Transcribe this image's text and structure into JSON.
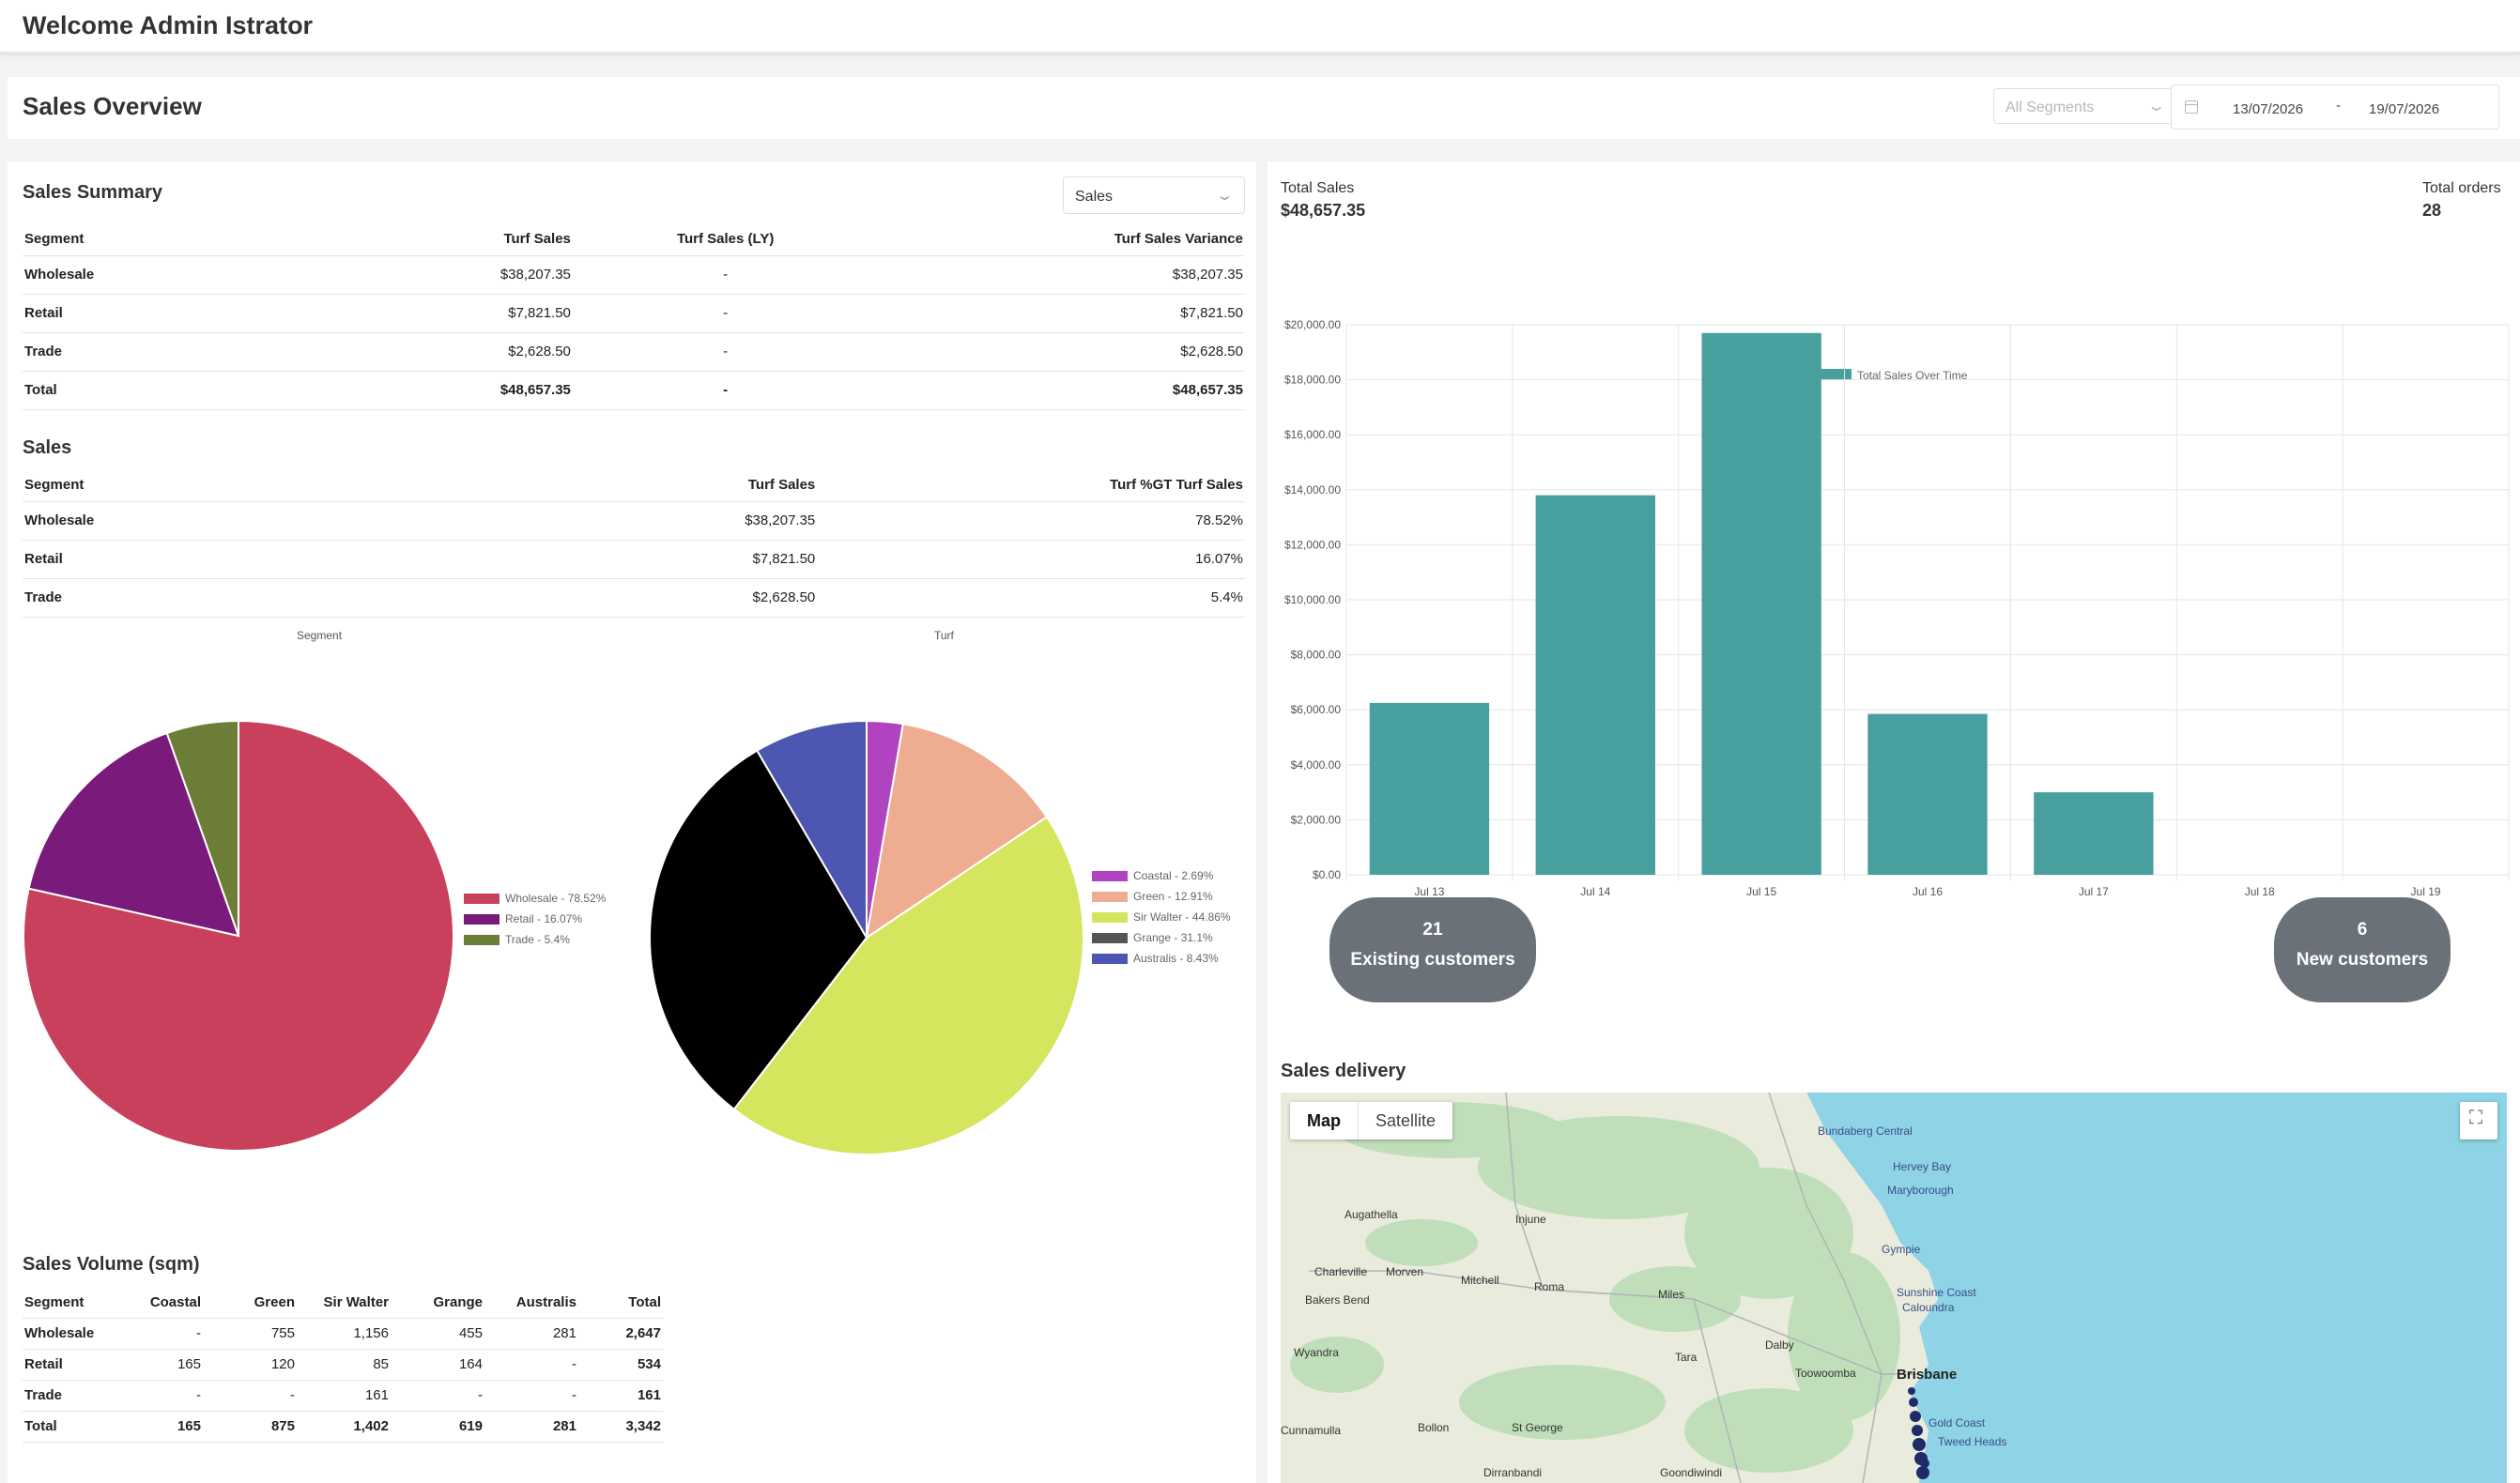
{
  "header": {
    "welcome": "Welcome Admin Istrator"
  },
  "overview": {
    "title": "Sales Overview",
    "segment_filter": "All Segments",
    "date_from": "13/07/2026",
    "date_sep": "-",
    "date_to": "19/07/2026"
  },
  "sales_summary": {
    "title": "Sales Summary",
    "dropdown": "Sales",
    "headers": [
      "Segment",
      "Turf Sales",
      "Turf Sales (LY)",
      "Turf Sales Variance"
    ],
    "rows": [
      [
        "Wholesale",
        "$38,207.35",
        "-",
        "$38,207.35"
      ],
      [
        "Retail",
        "$7,821.50",
        "-",
        "$7,821.50"
      ],
      [
        "Trade",
        "$2,628.50",
        "-",
        "$2,628.50"
      ],
      [
        "Total",
        "$48,657.35",
        "-",
        "$48,657.35"
      ]
    ]
  },
  "sales": {
    "title": "Sales",
    "headers": [
      "Segment",
      "Turf Sales",
      "Turf %GT Turf Sales"
    ],
    "rows": [
      [
        "Wholesale",
        "$38,207.35",
        "78.52%"
      ],
      [
        "Retail",
        "$7,821.50",
        "16.07%"
      ],
      [
        "Trade",
        "$2,628.50",
        "5.4%"
      ]
    ]
  },
  "segment_pie": {
    "title": "Segment",
    "slices": [
      {
        "label": "Wholesale - 78.52%",
        "value": 78.52,
        "color": "#c8405c"
      },
      {
        "label": "Retail - 16.07%",
        "value": 16.07,
        "color": "#7a1a7a"
      },
      {
        "label": "Trade - 5.4%",
        "value": 5.4,
        "color": "#6b7d36"
      }
    ]
  },
  "turf_pie": {
    "title": "Turf",
    "slices": [
      {
        "label": "Coastal - 2.69%",
        "value": 2.69,
        "color": "#b044c0"
      },
      {
        "label": "Green - 12.91%",
        "value": 12.91,
        "color": "#eeac90"
      },
      {
        "label": "Sir Walter - 44.86%",
        "value": 44.86,
        "color": "#d5e55e"
      },
      {
        "label": "Grange - 31.1%",
        "value": 31.1,
        "color": "#000000"
      },
      {
        "label": "Australis - 8.43%",
        "value": 8.43,
        "color": "#4d57b2"
      }
    ]
  },
  "volume": {
    "title": "Sales Volume (sqm)",
    "headers": [
      "Segment",
      "Coastal",
      "Green",
      "Sir Walter",
      "Grange",
      "Australis",
      "Total"
    ],
    "rows": [
      [
        "Wholesale",
        "-",
        "755",
        "1,156",
        "455",
        "281",
        "2,647"
      ],
      [
        "Retail",
        "165",
        "120",
        "85",
        "164",
        "-",
        "534"
      ],
      [
        "Trade",
        "-",
        "-",
        "161",
        "-",
        "-",
        "161"
      ],
      [
        "Total",
        "165",
        "875",
        "1,402",
        "619",
        "281",
        "3,342"
      ]
    ]
  },
  "totals": {
    "sales_label": "Total Sales",
    "sales_value": "$48,657.35",
    "orders_label": "Total orders",
    "orders_value": "28"
  },
  "chart_data": {
    "type": "bar",
    "legend": "Total Sales Over Time",
    "categories": [
      "Jul 13",
      "Jul 14",
      "Jul 15",
      "Jul 16",
      "Jul 17",
      "Jul 18",
      "Jul 19"
    ],
    "values": [
      6250,
      13800,
      19700,
      5850,
      3000,
      0,
      0
    ],
    "ylim": [
      0,
      20000
    ],
    "yticks": [
      "$0.00",
      "$2,000.00",
      "$4,000.00",
      "$6,000.00",
      "$8,000.00",
      "$10,000.00",
      "$12,000.00",
      "$14,000.00",
      "$16,000.00",
      "$18,000.00",
      "$20,000.00"
    ],
    "color": "#48a09e",
    "grid": true
  },
  "customers": {
    "existing_count": "21",
    "existing_label": "Existing customers",
    "new_count": "6",
    "new_label": "New customers"
  },
  "delivery": {
    "title": "Sales delivery",
    "map_tab": "Map",
    "satellite_tab": "Satellite",
    "fullscreen_icon": "fullscreen-icon",
    "places": [
      "Bundaberg Central",
      "Hervey Bay",
      "Maryborough",
      "Augathella",
      "Injune",
      "Gympie",
      "Charleville",
      "Morven",
      "Mitchell",
      "Roma",
      "Miles",
      "Sunshine Coast",
      "Caloundra",
      "Bakers Bend",
      "Dalby",
      "Wyandra",
      "Tara",
      "Toowoomba",
      "Brisbane",
      "Bollon",
      "St George",
      "Gold Coast",
      "Tweed Heads",
      "Cunnamulla",
      "Dirranbandi",
      "Goondiwindi"
    ]
  }
}
